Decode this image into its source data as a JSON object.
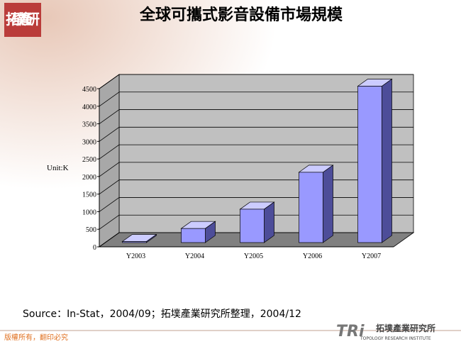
{
  "chart_data": {
    "type": "bar3d",
    "title": "全球可攜式影音設備市場規模",
    "y_label": "Unit:K",
    "categories": [
      "Y2003",
      "Y2004",
      "Y2005",
      "Y2006",
      "Y2007"
    ],
    "values": [
      30,
      400,
      950,
      2000,
      4450
    ],
    "color": "#9999ff",
    "ylim": [
      0,
      4500
    ],
    "yticks": [
      0,
      500,
      1000,
      1500,
      2000,
      2500,
      3000,
      3500,
      4000,
      4500
    ],
    "grid": true
  },
  "slide": {
    "logo": "拓墣產研",
    "source": "Source：In-Stat，2004/09；拓墣產業研究所整理，2004/12",
    "copyright": "版權所有，翻印必究",
    "brand_mark": "TRi",
    "brand_name": "拓墣產業研究所",
    "brand_english": "TOPOLOGY RESEARCH INSTITUTE"
  }
}
